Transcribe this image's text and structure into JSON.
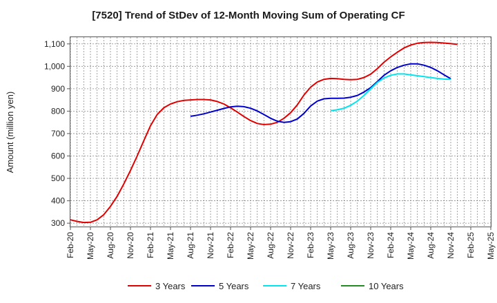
{
  "chart_data": {
    "type": "line",
    "title": "[7520]  Trend of StDev of 12-Month Moving Sum of Operating CF",
    "xlabel": "",
    "ylabel": "Amount (million yen)",
    "ylim": [
      285,
      1130
    ],
    "yticks": [
      300,
      400,
      500,
      600,
      700,
      800,
      900,
      1000,
      1100
    ],
    "ytick_labels": [
      "300",
      "400",
      "500",
      "600",
      "700",
      "800",
      "900",
      "1,000",
      "1,100"
    ],
    "x_labels": [
      "Feb-20",
      "May-20",
      "Aug-20",
      "Nov-20",
      "Feb-21",
      "May-21",
      "Aug-21",
      "Nov-21",
      "Feb-22",
      "May-22",
      "Aug-22",
      "Nov-22",
      "Feb-23",
      "May-23",
      "Aug-23",
      "Nov-23",
      "Feb-24",
      "May-24",
      "Aug-24",
      "Nov-24",
      "Feb-25",
      "May-25"
    ],
    "grid": true,
    "legend_position": "bottom",
    "series": [
      {
        "name": "3 Years",
        "color": "#e00000",
        "start_index": 0,
        "values": [
          315,
          308,
          303,
          304,
          315,
          338,
          375,
          420,
          475,
          535,
          600,
          668,
          735,
          785,
          815,
          832,
          842,
          848,
          850,
          852,
          852,
          850,
          843,
          832,
          815,
          796,
          776,
          758,
          745,
          740,
          742,
          750,
          768,
          793,
          828,
          872,
          907,
          930,
          942,
          946,
          945,
          942,
          940,
          942,
          950,
          965,
          990,
          1018,
          1042,
          1063,
          1082,
          1095,
          1103,
          1106,
          1107,
          1106,
          1104,
          1101,
          1098
        ]
      },
      {
        "name": "5 Years",
        "color": "#0000cc",
        "start_index": 18,
        "values": [
          777,
          782,
          788,
          796,
          804,
          812,
          819,
          822,
          820,
          813,
          801,
          785,
          768,
          755,
          750,
          753,
          765,
          790,
          823,
          845,
          855,
          857,
          857,
          858,
          862,
          870,
          885,
          905,
          932,
          960,
          980,
          995,
          1005,
          1011,
          1011,
          1005,
          995,
          980,
          962,
          945
        ]
      },
      {
        "name": "7 Years",
        "color": "#00e5ee",
        "start_index": 39,
        "values": [
          802,
          806,
          813,
          826,
          845,
          870,
          900,
          928,
          948,
          960,
          966,
          966,
          962,
          958,
          954,
          950,
          946,
          943,
          942
        ]
      },
      {
        "name": "10 Years",
        "color": "#228b22",
        "start_index": 0,
        "values": []
      }
    ]
  }
}
